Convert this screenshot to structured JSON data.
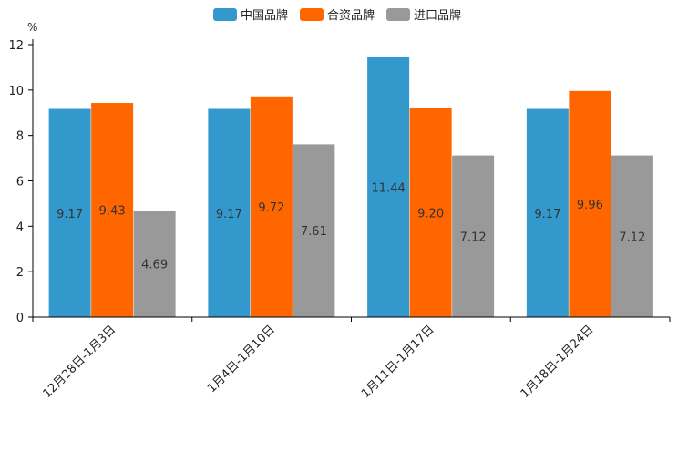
{
  "chart_data": {
    "type": "bar",
    "title": "",
    "xlabel": "",
    "ylabel": "",
    "yunit": "%",
    "ylim": [
      0,
      12
    ],
    "yticks": [
      0,
      2,
      4,
      6,
      8,
      10,
      12
    ],
    "grid": false,
    "legend_position": "top-center",
    "categories": [
      "12月28日-1月3日",
      "1月4日-1月10日",
      "1月11日-1月17日",
      "1月18日-1月24日"
    ],
    "series": [
      {
        "name": "中国品牌",
        "color": "#3399cc",
        "values": [
          9.17,
          9.17,
          11.44,
          9.17
        ],
        "labels": [
          "9.17",
          "9.17",
          "11.44",
          "9.17"
        ]
      },
      {
        "name": "合资品牌",
        "color": "#ff6600",
        "values": [
          9.43,
          9.72,
          9.2,
          9.96
        ],
        "labels": [
          "9.43",
          "9.72",
          "9.20",
          "9.96"
        ]
      },
      {
        "name": "进口品牌",
        "color": "#999999",
        "values": [
          4.69,
          7.61,
          7.12,
          7.12
        ],
        "labels": [
          "4.69",
          "7.61",
          "7.12",
          "7.12"
        ]
      }
    ]
  }
}
